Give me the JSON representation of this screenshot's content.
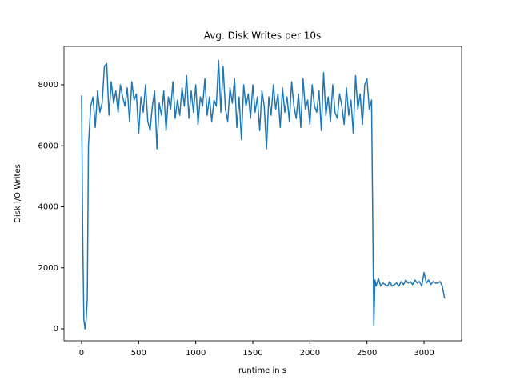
{
  "chart_data": {
    "type": "line",
    "title": "Avg. Disk Writes per 10s",
    "x_label": "runtime in s",
    "y_label": "Disk I/O Writes",
    "xlim": [
      -154,
      3329
    ],
    "ylim": [
      -393,
      9259
    ],
    "xticks": [
      0,
      500,
      1000,
      1500,
      2000,
      2500,
      3000
    ],
    "yticks": [
      0,
      2000,
      4000,
      6000,
      8000
    ],
    "grid": false,
    "series": [
      {
        "color": "#1f77b4",
        "x": [
          0,
          10,
          20,
          30,
          40,
          50,
          60,
          80,
          100,
          120,
          140,
          160,
          180,
          200,
          220,
          240,
          260,
          280,
          300,
          320,
          340,
          360,
          380,
          400,
          420,
          440,
          460,
          480,
          500,
          520,
          540,
          560,
          580,
          600,
          620,
          640,
          660,
          680,
          700,
          720,
          740,
          760,
          780,
          800,
          820,
          840,
          860,
          880,
          900,
          920,
          940,
          960,
          980,
          1000,
          1020,
          1040,
          1060,
          1080,
          1100,
          1120,
          1140,
          1160,
          1180,
          1200,
          1220,
          1240,
          1260,
          1280,
          1300,
          1320,
          1340,
          1360,
          1380,
          1400,
          1420,
          1440,
          1460,
          1480,
          1500,
          1520,
          1540,
          1560,
          1580,
          1600,
          1620,
          1640,
          1660,
          1680,
          1700,
          1720,
          1740,
          1760,
          1780,
          1800,
          1820,
          1840,
          1860,
          1880,
          1900,
          1920,
          1940,
          1960,
          1980,
          2000,
          2020,
          2040,
          2060,
          2080,
          2100,
          2120,
          2140,
          2160,
          2180,
          2200,
          2220,
          2240,
          2260,
          2280,
          2300,
          2320,
          2340,
          2360,
          2380,
          2400,
          2420,
          2440,
          2460,
          2480,
          2500,
          2520,
          2540,
          2560,
          2570,
          2580,
          2600,
          2620,
          2640,
          2660,
          2680,
          2700,
          2720,
          2740,
          2760,
          2780,
          2800,
          2820,
          2840,
          2860,
          2880,
          2900,
          2920,
          2940,
          2960,
          2980,
          3000,
          3020,
          3040,
          3060,
          3080,
          3100,
          3120,
          3140,
          3160,
          3180
        ],
        "values": [
          7650,
          3000,
          300,
          0,
          300,
          1000,
          6000,
          7300,
          7600,
          6600,
          7800,
          7100,
          7400,
          8600,
          8700,
          7000,
          8100,
          7400,
          7800,
          7100,
          8000,
          7600,
          7300,
          7900,
          6800,
          8100,
          7500,
          7700,
          6400,
          7600,
          7100,
          8000,
          6800,
          6500,
          7300,
          7800,
          5900,
          7400,
          7000,
          7800,
          6500,
          7600,
          7200,
          8100,
          6900,
          7500,
          7000,
          7900,
          7300,
          8300,
          6900,
          7800,
          7100,
          8000,
          6700,
          7600,
          7300,
          8200,
          7000,
          7600,
          6800,
          7500,
          7300,
          8800,
          7100,
          8600,
          7200,
          6800,
          7900,
          7400,
          8200,
          6600,
          7600,
          6200,
          8000,
          7300,
          7700,
          6900,
          8000,
          7100,
          7600,
          6500,
          7800,
          7300,
          5900,
          7600,
          7000,
          8000,
          7200,
          7700,
          6600,
          7900,
          7100,
          7600,
          6800,
          8100,
          7300,
          6900,
          7700,
          6600,
          8200,
          7200,
          7500,
          6700,
          8000,
          7300,
          7100,
          7800,
          6500,
          8400,
          7000,
          7600,
          6800,
          8000,
          7100,
          6900,
          7700,
          7300,
          6700,
          7900,
          7000,
          7500,
          6400,
          8300,
          7200,
          7700,
          6700,
          8000,
          8200,
          7200,
          7500,
          100,
          1600,
          1400,
          1650,
          1400,
          1500,
          1450,
          1400,
          1550,
          1400,
          1450,
          1500,
          1400,
          1550,
          1450,
          1600,
          1500,
          1550,
          1450,
          1600,
          1500,
          1550,
          1400,
          1850,
          1500,
          1600,
          1450,
          1550,
          1500,
          1500,
          1550,
          1400,
          1000
        ]
      }
    ]
  }
}
